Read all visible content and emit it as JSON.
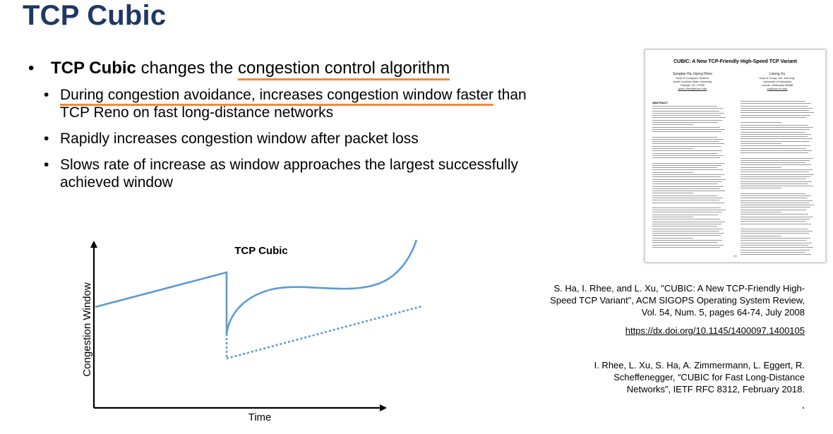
{
  "slide": {
    "title": "TCP Cubic"
  },
  "bullets": {
    "b1": {
      "bold": "TCP Cubic",
      "plain": " changes the ",
      "highlight": "congestion control algorithm"
    },
    "sub": [
      {
        "highlight": "During congestion avoidance, increases congestion window faster",
        "rest_line1": " than",
        "rest_line2": "TCP Reno on fast long-distance networks"
      },
      {
        "text": "Rapidly increases congestion window after packet loss"
      },
      {
        "line1": "Slows rate of increase as window approaches the largest successfully",
        "line2": "achieved window"
      }
    ],
    "bullet_char": "•"
  },
  "diagram": {
    "title": "TCP Cubic",
    "y_axis_label": "Congestion Window",
    "x_axis_label": "Time",
    "colors": {
      "curve": "#5b9bd5",
      "axis": "#000000"
    }
  },
  "paper": {
    "title": "CUBIC: A New TCP-Friendly High-Speed TCP Variant",
    "author1": {
      "name": "Sangtae Ha, Injong Rhee",
      "dept": "Dept of Computer Science",
      "univ": "North Carolina State University",
      "city": "Raleigh, NC 27695",
      "email": "{sha2,rhee}@ncsu.edu"
    },
    "author2": {
      "name": "Lisong Xu",
      "dept": "Dept of Comp. Sci. and Eng.",
      "univ": "University of Nebraska",
      "city": "Lincoln, Nebraska 68588",
      "email": "xu@cse.unl.edu"
    },
    "left_heading": "ABSTRACT",
    "left_heading2": "1. INTRODUCTION",
    "page_number": "64"
  },
  "references": {
    "ref1_line1": "S. Ha, I. Rhee, and L. Xu, \"CUBIC: A New TCP-Friendly High-",
    "ref1_line2": "Speed TCP Variant\", ACM SIGOPS Operating System Review,",
    "ref1_line3": "Vol. 54, Num. 5, pages 64-74, July 2008",
    "doi": "https://dx.doi.org/10.1145/1400097.1400105",
    "ref2_line1": "I. Rhee, L. Xu, S. Ha, A. Zimmermann, L. Eggert, R.",
    "ref2_line2": "Scheffenegger, “CUBIC for Fast Long-Distance",
    "ref2_line3": "Networks”, IETF RFC 8312, February 2018."
  }
}
